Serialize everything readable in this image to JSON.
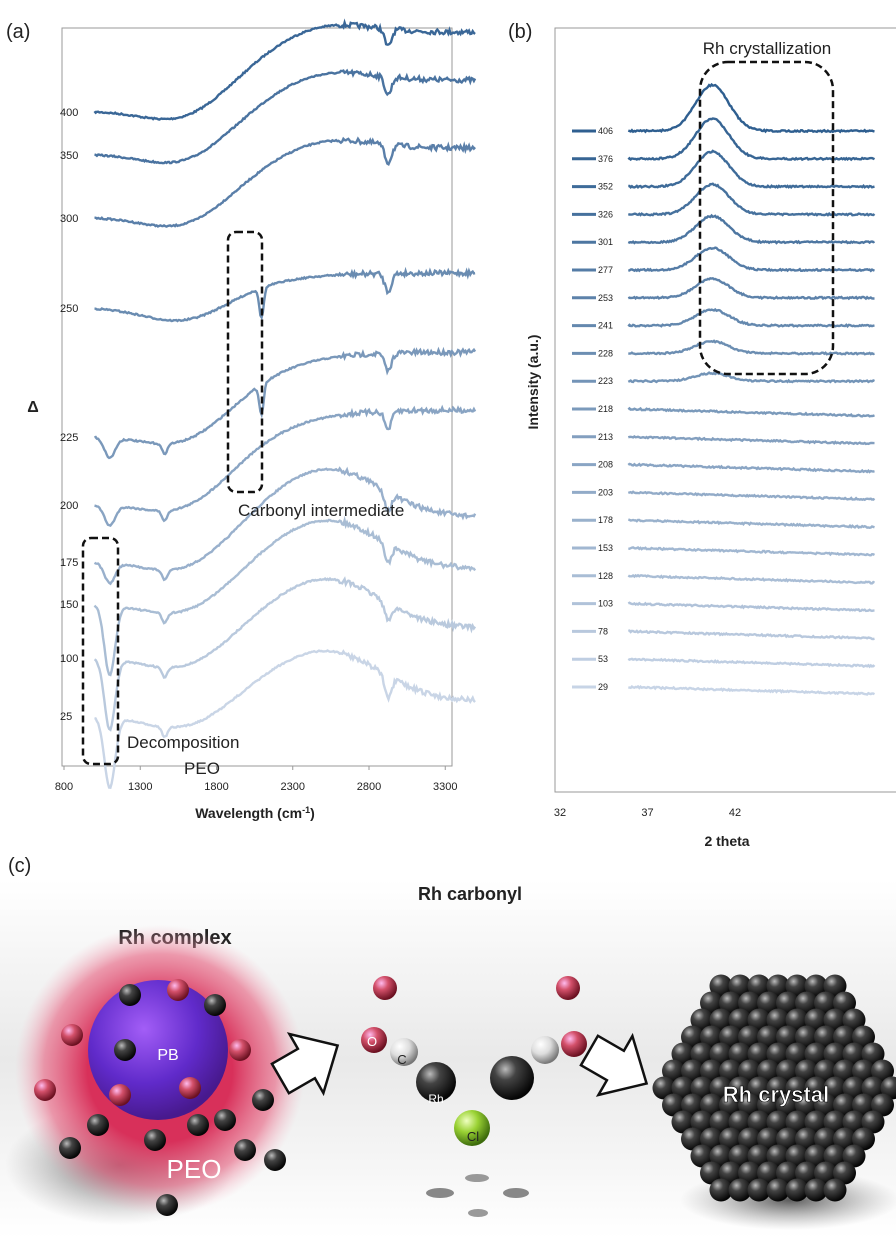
{
  "panel_a": {
    "label": "(a)",
    "y_label": "Δ",
    "x_label": "Wavelength (cm",
    "x_label_sup": "-1",
    "x_label_close": ")",
    "xticks": [
      800,
      1300,
      1800,
      2300,
      2800,
      3300
    ],
    "traces": [
      "400",
      "350",
      "300",
      "250",
      "225",
      "200",
      "175",
      "150",
      "100",
      "25"
    ],
    "annotation_carbonyl": "Carbonyl intermediate",
    "annotation_decomposition": "Decomposition",
    "annotation_peo": "PEO"
  },
  "panel_b": {
    "label": "(b)",
    "y_label": "Intensity (a.u.)",
    "x_label": "2 theta",
    "xticks": [
      32,
      37,
      42
    ],
    "traces": [
      "406",
      "376",
      "352",
      "326",
      "301",
      "277",
      "253",
      "241",
      "228",
      "223",
      "218",
      "213",
      "208",
      "203",
      "178",
      "153",
      "128",
      "103",
      "78",
      "53",
      "29"
    ],
    "annotation": "Rh crystallization"
  },
  "panel_c": {
    "label": "(c)",
    "title_carbonyl": "Rh carbonyl",
    "title_complex": "Rh complex",
    "core": "PB",
    "shell": "PEO",
    "atom_o": "O",
    "atom_c": "C",
    "atom_rh": "Rh",
    "atom_cl": "Cl",
    "crystal": "Rh crystal"
  }
}
